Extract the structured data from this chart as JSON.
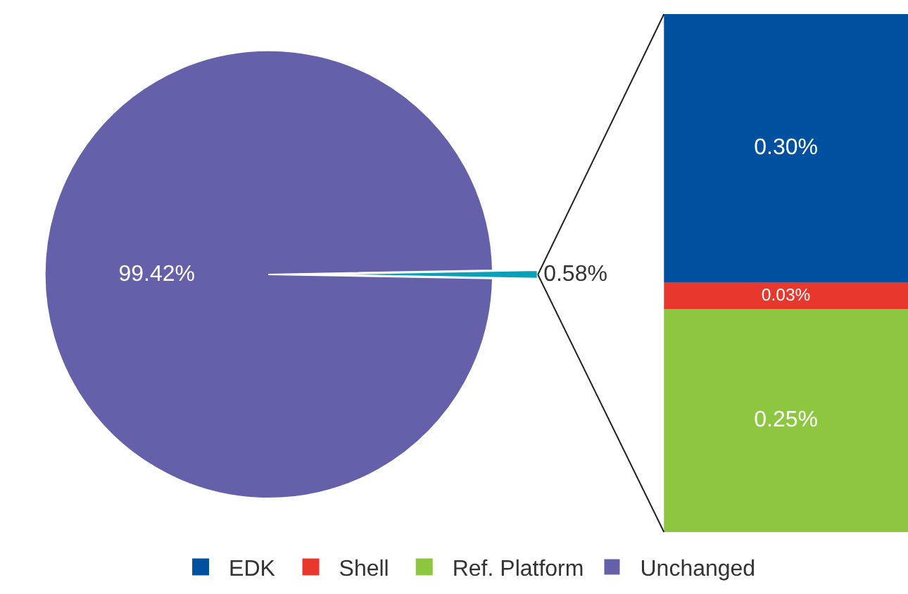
{
  "chart_data": [
    {
      "type": "pie",
      "categories": [
        "Unchanged",
        null
      ],
      "values": [
        99.42,
        0.58
      ],
      "colors": [
        "#6460aa",
        "#0aa0b8"
      ],
      "value_labels": [
        "99.42%",
        "0.58%"
      ],
      "legend": "bottom"
    },
    {
      "type": "bar",
      "stacked": true,
      "categories": [
        null
      ],
      "tick_labels": false,
      "legend": "bottom",
      "series": [
        {
          "name": "Ref. Platform",
          "color": "#8dc63f",
          "values": [
            0.25
          ],
          "value_labels": [
            "0.25%"
          ]
        },
        {
          "name": "Shell",
          "color": "#e8382d",
          "values": [
            0.03
          ],
          "value_labels": [
            "0.03%"
          ]
        },
        {
          "name": "EDK",
          "color": "#0050a0",
          "values": [
            0.3
          ],
          "value_labels": [
            "0.30%"
          ]
        }
      ]
    }
  ]
}
